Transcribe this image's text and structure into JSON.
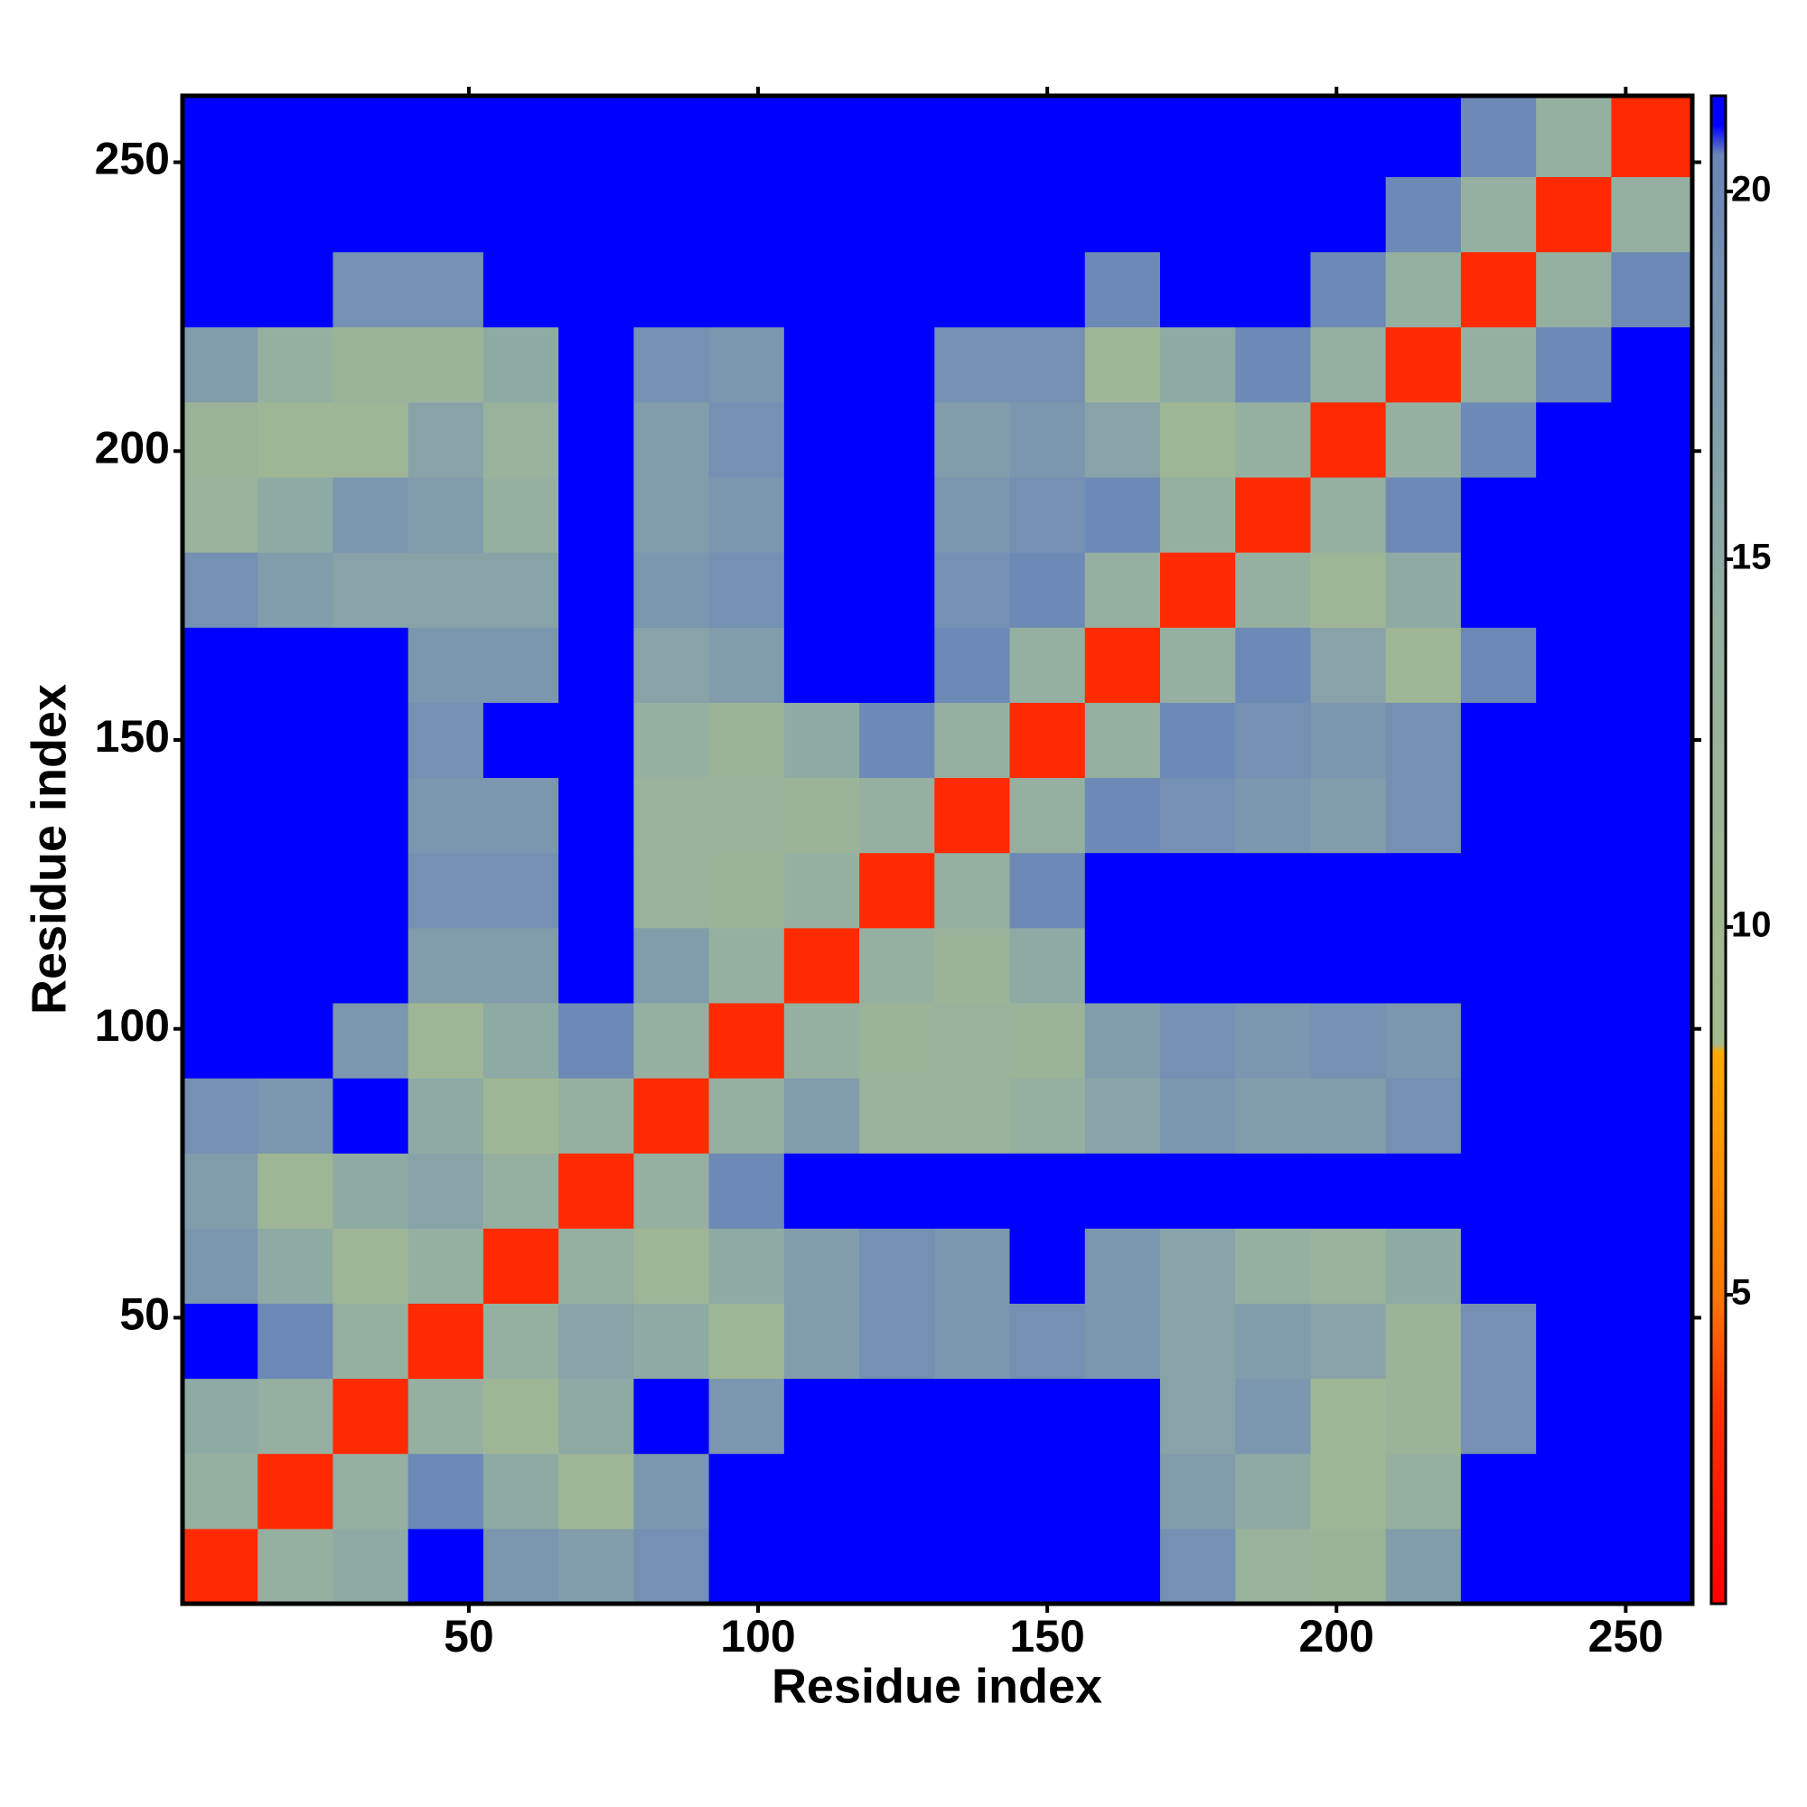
{
  "chart_data": {
    "type": "heatmap",
    "x_label": "Residue index",
    "y_label": "Residue index",
    "x_bins": [
      0.5,
      13.5,
      26.5,
      39.5,
      52.5,
      65.5,
      78.5,
      91.5,
      104.5,
      117.5,
      130.5,
      143.5,
      156.5,
      169.5,
      182.5,
      195.5,
      208.5,
      221.5,
      234.5,
      247.5,
      261.5
    ],
    "y_bins": [
      0.5,
      13.5,
      26.5,
      39.5,
      52.5,
      65.5,
      78.5,
      91.5,
      104.5,
      117.5,
      130.5,
      143.5,
      156.5,
      169.5,
      182.5,
      195.5,
      208.5,
      221.5,
      234.5,
      247.5,
      261.5
    ],
    "values": [
      [
        3,
        14,
        15,
        21,
        18,
        17,
        19,
        21,
        21,
        21,
        21,
        21,
        21,
        19,
        13,
        12,
        17,
        21,
        21,
        21
      ],
      [
        14,
        3,
        14,
        20,
        15,
        11,
        18,
        21,
        21,
        21,
        21,
        21,
        21,
        17,
        15,
        11,
        14,
        21,
        21,
        21
      ],
      [
        15,
        14,
        3,
        14,
        11,
        15,
        21,
        18,
        21,
        21,
        21,
        21,
        21,
        16,
        18,
        11,
        12,
        19,
        21,
        21
      ],
      [
        21,
        20,
        14,
        3,
        14,
        16,
        15,
        11,
        17,
        19,
        18,
        19,
        18,
        16,
        17,
        16,
        12,
        19,
        21,
        21
      ],
      [
        18,
        15,
        11,
        14,
        3,
        14,
        11,
        15,
        17,
        19,
        18,
        21,
        18,
        16,
        14,
        13,
        15,
        21,
        21,
        21
      ],
      [
        17,
        11,
        15,
        16,
        14,
        3,
        14,
        20,
        21,
        21,
        21,
        21,
        21,
        21,
        21,
        21,
        21,
        21,
        21,
        21
      ],
      [
        19,
        18,
        21,
        15,
        11,
        14,
        3,
        14,
        17,
        13,
        13,
        14,
        16,
        18,
        17,
        17,
        19,
        21,
        21,
        21
      ],
      [
        21,
        21,
        18,
        11,
        15,
        20,
        14,
        3,
        14,
        12,
        13,
        12,
        17,
        19,
        18,
        19,
        18,
        21,
        21,
        21
      ],
      [
        21,
        21,
        21,
        17,
        17,
        21,
        17,
        14,
        3,
        14,
        12,
        15,
        21,
        21,
        21,
        21,
        21,
        21,
        21,
        21
      ],
      [
        21,
        21,
        21,
        19,
        19,
        21,
        13,
        12,
        14,
        3,
        14,
        20,
        21,
        21,
        21,
        21,
        21,
        21,
        21,
        21
      ],
      [
        21,
        21,
        21,
        18,
        18,
        21,
        13,
        13,
        12,
        14,
        3,
        14,
        20,
        19,
        18,
        17,
        19,
        21,
        21,
        21
      ],
      [
        21,
        21,
        21,
        19,
        21,
        21,
        14,
        12,
        15,
        20,
        14,
        3,
        14,
        20,
        19,
        18,
        19,
        21,
        21,
        21
      ],
      [
        21,
        21,
        21,
        18,
        18,
        21,
        16,
        17,
        21,
        21,
        20,
        14,
        3,
        14,
        20,
        16,
        11,
        20,
        21,
        21
      ],
      [
        19,
        17,
        16,
        16,
        16,
        21,
        18,
        19,
        21,
        21,
        19,
        20,
        14,
        3,
        14,
        11,
        15,
        21,
        21,
        21
      ],
      [
        13,
        15,
        18,
        17,
        14,
        21,
        17,
        18,
        21,
        21,
        18,
        19,
        20,
        14,
        3,
        14,
        20,
        21,
        21,
        21
      ],
      [
        12,
        11,
        11,
        16,
        13,
        21,
        17,
        19,
        21,
        21,
        17,
        18,
        16,
        11,
        14,
        3,
        14,
        20,
        21,
        21
      ],
      [
        17,
        14,
        12,
        12,
        15,
        21,
        19,
        18,
        21,
        21,
        19,
        19,
        11,
        15,
        20,
        14,
        3,
        14,
        20,
        21
      ],
      [
        21,
        21,
        19,
        19,
        21,
        21,
        21,
        21,
        21,
        21,
        21,
        21,
        20,
        21,
        21,
        20,
        14,
        3,
        14,
        20
      ],
      [
        21,
        21,
        21,
        21,
        21,
        21,
        21,
        21,
        21,
        21,
        21,
        21,
        21,
        21,
        21,
        21,
        20,
        14,
        3,
        14
      ],
      [
        21,
        21,
        21,
        21,
        21,
        21,
        21,
        21,
        21,
        21,
        21,
        21,
        21,
        21,
        21,
        21,
        21,
        20,
        14,
        3
      ]
    ],
    "xlim": [
      0.5,
      261.5
    ],
    "ylim": [
      0.5,
      261.5
    ],
    "xticks": [
      50,
      100,
      150,
      200,
      250
    ],
    "yticks": [
      50,
      100,
      150,
      200,
      250
    ],
    "zlim": [
      0.8,
      21.3
    ],
    "zticks": [
      5,
      10,
      15,
      20
    ],
    "colorscale": [
      {
        "value": 0.8,
        "color": "#ff0000"
      },
      {
        "value": 3.5,
        "color": "#ff3300"
      },
      {
        "value": 5,
        "color": "#ff7700"
      },
      {
        "value": 8.3,
        "color": "#ffaa00"
      },
      {
        "value": 8.4,
        "color": "#a5bb8c"
      },
      {
        "value": 14,
        "color": "#95b0a0"
      },
      {
        "value": 20.5,
        "color": "#6a86b8"
      },
      {
        "value": 20.9,
        "color": "#0000ff"
      },
      {
        "value": 21.3,
        "color": "#0000ff"
      }
    ]
  }
}
